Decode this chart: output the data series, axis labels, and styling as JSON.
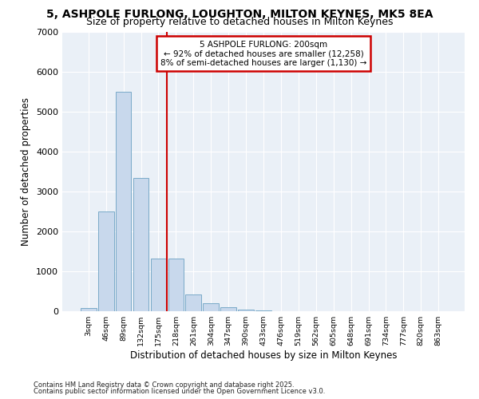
{
  "title_line1": "5, ASHPOLE FURLONG, LOUGHTON, MILTON KEYNES, MK5 8EA",
  "title_line2": "Size of property relative to detached houses in Milton Keynes",
  "xlabel": "Distribution of detached houses by size in Milton Keynes",
  "ylabel": "Number of detached properties",
  "categories": [
    "3sqm",
    "46sqm",
    "89sqm",
    "132sqm",
    "175sqm",
    "218sqm",
    "261sqm",
    "304sqm",
    "347sqm",
    "390sqm",
    "433sqm",
    "476sqm",
    "519sqm",
    "562sqm",
    "605sqm",
    "648sqm",
    "691sqm",
    "734sqm",
    "777sqm",
    "820sqm",
    "863sqm"
  ],
  "values": [
    75,
    2500,
    5500,
    3350,
    1330,
    1330,
    420,
    200,
    100,
    50,
    20,
    0,
    0,
    0,
    0,
    0,
    0,
    0,
    0,
    0,
    0
  ],
  "bar_color": "#c8d8ec",
  "bar_edge_color": "#7aaac8",
  "vline_x": 4.5,
  "vline_color": "#cc0000",
  "annotation_text": "5 ASHPOLE FURLONG: 200sqm\n← 92% of detached houses are smaller (12,258)\n8% of semi-detached houses are larger (1,130) →",
  "annotation_box_edgecolor": "#cc0000",
  "ylim": [
    0,
    7000
  ],
  "yticks": [
    0,
    1000,
    2000,
    3000,
    4000,
    5000,
    6000,
    7000
  ],
  "bg_color": "#eaf0f7",
  "grid_color": "#ffffff",
  "footer_line1": "Contains HM Land Registry data © Crown copyright and database right 2025.",
  "footer_line2": "Contains public sector information licensed under the Open Government Licence v3.0."
}
